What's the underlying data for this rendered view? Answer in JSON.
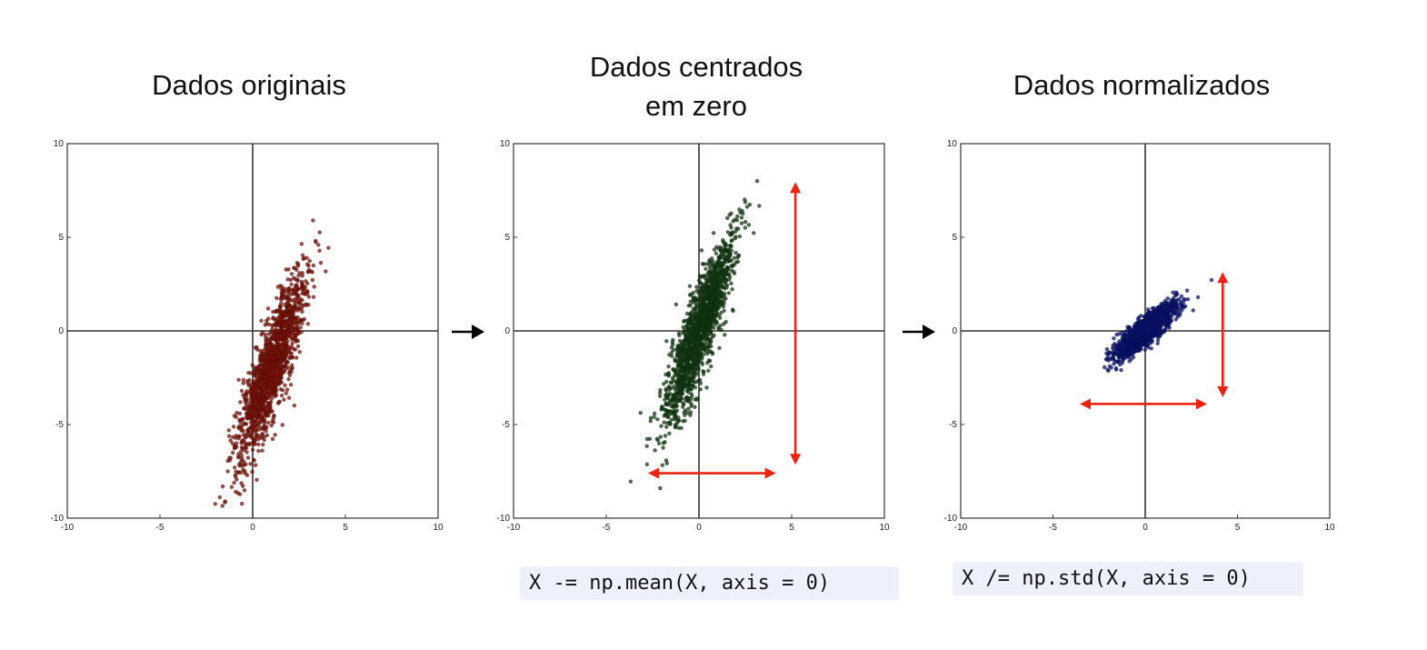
{
  "titles": {
    "original": [
      "Dados originais"
    ],
    "centered": [
      "Dados centrados",
      "em zero"
    ],
    "normalized": [
      "Dados normalizados"
    ]
  },
  "code": {
    "mean": "X -= np.mean(X, axis = 0)",
    "std": "X /= np.std(X, axis = 0)"
  },
  "colors": {
    "original": "#7a1208",
    "centered": "#123a12",
    "normalized": "#0a1370",
    "arrow_red": "#ee2211",
    "axis": "#333333"
  },
  "chart_data": [
    {
      "type": "scatter",
      "title": "Dados originais",
      "xlim": [
        -10,
        10
      ],
      "ylim": [
        -10,
        10
      ],
      "xticks": [
        "-10",
        "-5",
        "0",
        "5",
        "10"
      ],
      "yticks": [
        "10",
        "5",
        "0",
        "-5",
        "-10"
      ],
      "grid": false,
      "series": [
        {
          "color": "#7a1208",
          "center": [
            1,
            -2
          ],
          "std_major": 2.6,
          "std_minor": 0.45,
          "slope": 3.0,
          "count": 1500
        }
      ]
    },
    {
      "type": "scatter",
      "title": "Dados centrados em zero",
      "xlim": [
        -10,
        10
      ],
      "ylim": [
        -10,
        10
      ],
      "xticks": [
        "-10",
        "-5",
        "0",
        "5",
        "10"
      ],
      "yticks": [
        "10",
        "5",
        "0",
        "-5",
        "-10"
      ],
      "grid": false,
      "series": [
        {
          "color": "#123a12",
          "center": [
            0,
            0
          ],
          "std_major": 2.6,
          "std_minor": 0.45,
          "slope": 3.0,
          "count": 1500
        }
      ],
      "annotations": [
        {
          "type": "double-arrow",
          "orientation": "vertical",
          "x": 5.2,
          "from": -7,
          "to": 7.8
        },
        {
          "type": "double-arrow",
          "orientation": "horizontal",
          "y": -7.6,
          "from": -2.6,
          "to": 4
        }
      ]
    },
    {
      "type": "scatter",
      "title": "Dados normalizados",
      "xlim": [
        -10,
        10
      ],
      "ylim": [
        -10,
        10
      ],
      "xticks": [
        "-10",
        "-5",
        "0",
        "5",
        "10"
      ],
      "yticks": [
        "10",
        "5",
        "0",
        "-5",
        "-10"
      ],
      "grid": false,
      "series": [
        {
          "color": "#0a1370",
          "center": [
            0,
            0
          ],
          "std_major": 1.05,
          "std_minor": 0.28,
          "slope": 0.85,
          "count": 1500
        }
      ],
      "annotations": [
        {
          "type": "double-arrow",
          "orientation": "vertical",
          "x": 4.2,
          "from": -3.4,
          "to": 3.0
        },
        {
          "type": "double-arrow",
          "orientation": "horizontal",
          "y": -3.9,
          "from": -3.4,
          "to": 3.2
        }
      ]
    }
  ]
}
